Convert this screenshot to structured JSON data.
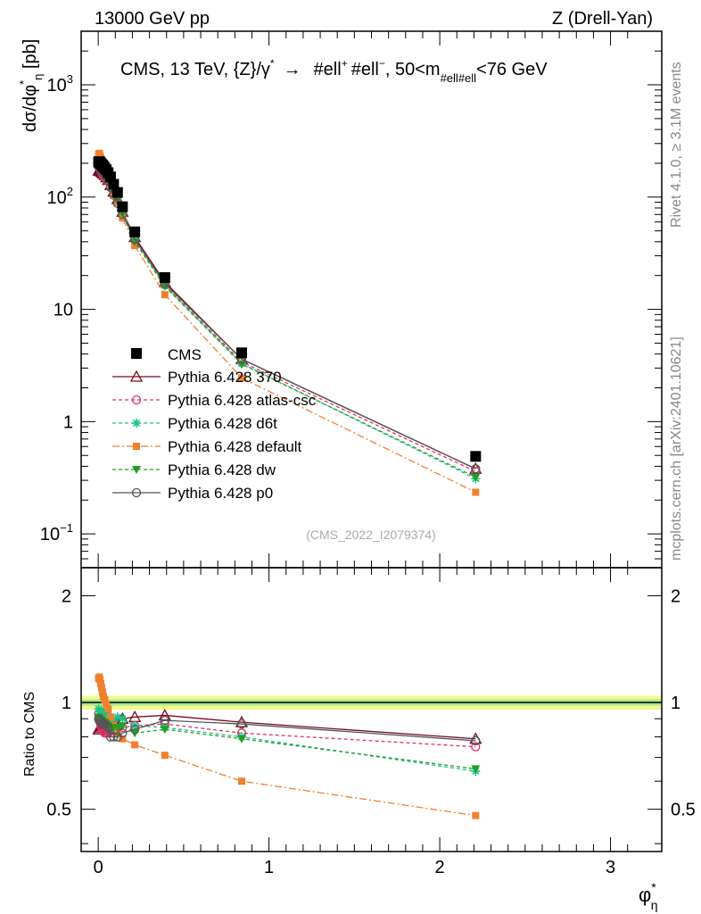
{
  "header": {
    "left": "13000 GeV pp",
    "right": "Z (Drell-Yan)"
  },
  "side": {
    "rivet": "Rivet 4.1.0, ≥ 3.1M events",
    "mcplots": "mcplots.cern.ch [arXiv:2401.10621]"
  },
  "chart_data": [
    {
      "type": "line",
      "title": "CMS, 13 TeV, {Z}/γ*  →  #ell⁺ #ell⁻, 50<m_#ell#ell<76 GeV",
      "title_main": "CMS, 13 TeV, {Z}/γ",
      "title_arrow": "→",
      "title_leptons": "#ell",
      "title_leptons2": "#ell",
      "title_range": "50<m",
      "title_sub": "#ell#ell",
      "title_unit": "<76 GeV",
      "ylabel": "dσ/dφ*η [pb]",
      "ylabel_parts": [
        "dσ/dφ",
        "*",
        "η",
        " [pb]"
      ],
      "yscale": "log",
      "xlim": [
        -0.1,
        3.3
      ],
      "ylim": [
        0.05,
        3000
      ],
      "xticks": [
        0,
        1,
        2,
        3
      ],
      "yticks": [
        {
          "value": 1000,
          "label": "10",
          "exp": "3"
        },
        {
          "value": 100,
          "label": "10",
          "exp": "2"
        },
        {
          "value": 10,
          "label": "10",
          "exp": ""
        },
        {
          "value": 1,
          "label": "1",
          "exp": ""
        },
        {
          "value": 0.1,
          "label": "10",
          "exp": "−1"
        }
      ],
      "watermark": "(CMS_2022_I2079374)",
      "legend_position": "middle-left",
      "x": [
        0.002,
        0.006,
        0.01,
        0.015,
        0.02,
        0.025,
        0.03,
        0.038,
        0.047,
        0.058,
        0.072,
        0.09,
        0.113,
        0.142,
        0.214,
        0.39,
        0.84,
        2.21
      ],
      "data": {
        "name": "CMS",
        "values": [
          205,
          207,
          203,
          200,
          196,
          192,
          188,
          182,
          175,
          165,
          151,
          130,
          110,
          82,
          49,
          19.2,
          4.1,
          0.49
        ]
      },
      "series": [
        {
          "name": "Pythia 6.428 370",
          "color": "#7a0b20",
          "marker": "open-triangle",
          "dash": "solid",
          "values": [
            172,
            174,
            172,
            170,
            168,
            165,
            162,
            157,
            150,
            142,
            128,
            112,
            96,
            74,
            44,
            17.5,
            3.6,
            0.38
          ]
        },
        {
          "name": "Pythia 6.428 atlas-csc",
          "color": "#e0306a",
          "marker": "open-circle",
          "dash": "4,3",
          "values": [
            190,
            185,
            178,
            172,
            166,
            160,
            155,
            150,
            145,
            138,
            125,
            108,
            92,
            70,
            42,
            16.6,
            3.4,
            0.36
          ]
        },
        {
          "name": "Pythia 6.428 d6t",
          "color": "#20c08a",
          "marker": "star",
          "dash": "4,3",
          "values": [
            196,
            195,
            192,
            188,
            184,
            180,
            176,
            170,
            162,
            152,
            138,
            118,
            100,
            74,
            42,
            16.3,
            3.3,
            0.31
          ]
        },
        {
          "name": "Pythia 6.428 default",
          "color": "#f08030",
          "marker": "filled-square",
          "dash": "8,3,2,3",
          "values": [
            240,
            245,
            235,
            225,
            215,
            205,
            196,
            186,
            174,
            158,
            138,
            112,
            90,
            65,
            37,
            13.5,
            2.45,
            0.235
          ]
        },
        {
          "name": "Pythia 6.428 dw",
          "color": "#22a022",
          "marker": "filled-triangle-down",
          "dash": "4,3",
          "values": [
            186,
            185,
            182,
            178,
            174,
            170,
            166,
            160,
            152,
            142,
            128,
            110,
            93,
            71,
            40,
            16.0,
            3.25,
            0.32
          ]
        },
        {
          "name": "Pythia 6.428 p0",
          "color": "#555555",
          "marker": "open-circle",
          "dash": "solid",
          "values": [
            185,
            184,
            180,
            176,
            172,
            168,
            164,
            158,
            150,
            140,
            122,
            104,
            88,
            70,
            42,
            17.0,
            3.6,
            0.38
          ]
        }
      ]
    },
    {
      "type": "line",
      "ylabel": "Ratio to CMS",
      "yscale": "log",
      "ylim": [
        0.38,
        2.4
      ],
      "yticks": [
        {
          "value": 2,
          "label": "2"
        },
        {
          "value": 1,
          "label": "1"
        },
        {
          "value": 0.5,
          "label": "0.5"
        }
      ],
      "xticks": [
        0,
        1,
        2,
        3
      ],
      "xlabel_parts": [
        "φ",
        "*",
        "η"
      ],
      "band": {
        "inner": [
          0.98,
          1.02
        ],
        "outer": [
          0.955,
          1.045
        ]
      },
      "ratios": [
        {
          "name": "Pythia 6.428 370",
          "values": [
            0.84,
            0.84,
            0.85,
            0.85,
            0.86,
            0.86,
            0.86,
            0.86,
            0.86,
            0.86,
            0.85,
            0.86,
            0.87,
            0.9,
            0.91,
            0.92,
            0.88,
            0.79
          ]
        },
        {
          "name": "Pythia 6.428 atlas-csc",
          "values": [
            0.93,
            0.89,
            0.88,
            0.86,
            0.85,
            0.84,
            0.83,
            0.82,
            0.82,
            0.82,
            0.83,
            0.84,
            0.84,
            0.85,
            0.86,
            0.87,
            0.82,
            0.75
          ]
        },
        {
          "name": "Pythia 6.428 d6t",
          "values": [
            0.96,
            0.94,
            0.94,
            0.94,
            0.94,
            0.94,
            0.94,
            0.93,
            0.93,
            0.92,
            0.91,
            0.9,
            0.91,
            0.9,
            0.86,
            0.85,
            0.8,
            0.64
          ]
        },
        {
          "name": "Pythia 6.428 default",
          "values": [
            1.17,
            1.18,
            1.16,
            1.13,
            1.1,
            1.07,
            1.04,
            1.02,
            0.99,
            0.96,
            0.91,
            0.86,
            0.82,
            0.79,
            0.76,
            0.71,
            0.6,
            0.48
          ]
        },
        {
          "name": "Pythia 6.428 dw",
          "values": [
            0.91,
            0.9,
            0.9,
            0.89,
            0.89,
            0.89,
            0.88,
            0.88,
            0.87,
            0.86,
            0.85,
            0.85,
            0.85,
            0.86,
            0.82,
            0.84,
            0.79,
            0.65
          ]
        },
        {
          "name": "Pythia 6.428 p0",
          "values": [
            0.9,
            0.89,
            0.89,
            0.88,
            0.88,
            0.87,
            0.87,
            0.87,
            0.86,
            0.85,
            0.8,
            0.8,
            0.8,
            0.82,
            0.84,
            0.89,
            0.87,
            0.78
          ]
        }
      ]
    }
  ]
}
